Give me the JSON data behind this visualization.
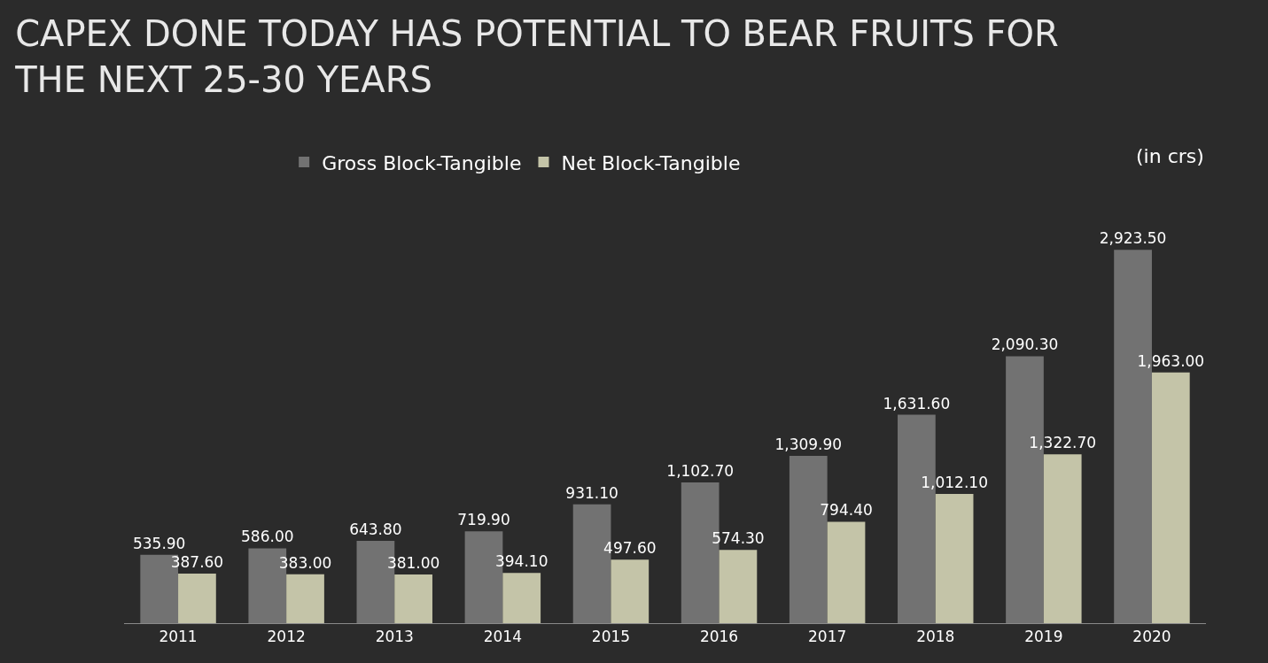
{
  "chart_data": {
    "type": "bar",
    "title": "CAPEX DONE TODAY HAS POTENTIAL TO BEAR FRUITS FOR THE NEXT 25-30 YEARS",
    "annotations": [
      "(in crs)"
    ],
    "categories": [
      "2011",
      "2012",
      "2013",
      "2014",
      "2015",
      "2016",
      "2017",
      "2018",
      "2019",
      "2020"
    ],
    "legend": "top left",
    "series": [
      {
        "name": "Gross Block-Tangible",
        "color": "#727272",
        "values": [
          535.9,
          586.0,
          643.8,
          719.9,
          931.1,
          1102.7,
          1309.9,
          1631.6,
          2090.3,
          2923.5
        ],
        "value_labels": [
          "535.90",
          "586.00",
          "643.80",
          "719.90",
          "931.10",
          "1,102.70",
          "1,309.90",
          "1,631.60",
          "2,090.30",
          "2,923.50"
        ]
      },
      {
        "name": "Net Block-Tangible",
        "color": "#c4c4a8",
        "values": [
          387.6,
          383.0,
          381.0,
          394.1,
          497.6,
          574.3,
          794.4,
          1012.1,
          1322.7,
          1963.0
        ],
        "value_labels": [
          "387.60",
          "383.00",
          "381.00",
          "394.10",
          "497.60",
          "574.30",
          "794.40",
          "1,012.10",
          "1,322.70",
          "1,963.00"
        ]
      }
    ]
  }
}
